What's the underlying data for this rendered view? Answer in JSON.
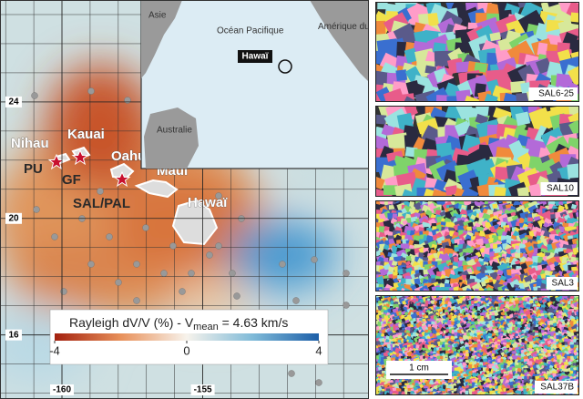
{
  "map": {
    "lon_lim": [
      -162.2,
      -149.1
    ],
    "lat_lim": [
      27.5,
      13.8
    ],
    "lat_ticks": [
      24,
      20,
      16
    ],
    "lon_ticks": [
      -160,
      -155
    ],
    "islands": [
      "Nihau",
      "Kauai",
      "Oahu",
      "Maui",
      "Hawaï"
    ],
    "sites": [
      "PU",
      "GF",
      "SAL/PAL"
    ],
    "inset": {
      "labels": [
        "Asie",
        "Océan Pacifique",
        "Amérique du Nord",
        "Australie"
      ],
      "highlight": "Hawaï"
    },
    "colorbar": {
      "label": "Rayleigh dV/V (%)  -  V",
      "subscript": "mean",
      "label_end": " = 4.63 km/s",
      "lim": [
        -4,
        4
      ],
      "ticks": [
        -4,
        0,
        4
      ]
    }
  },
  "micrographs": {
    "labels": [
      "SAL6-25",
      "SAL10",
      "SAL3",
      "SAL37B"
    ],
    "scale_bar": "1 cm"
  }
}
